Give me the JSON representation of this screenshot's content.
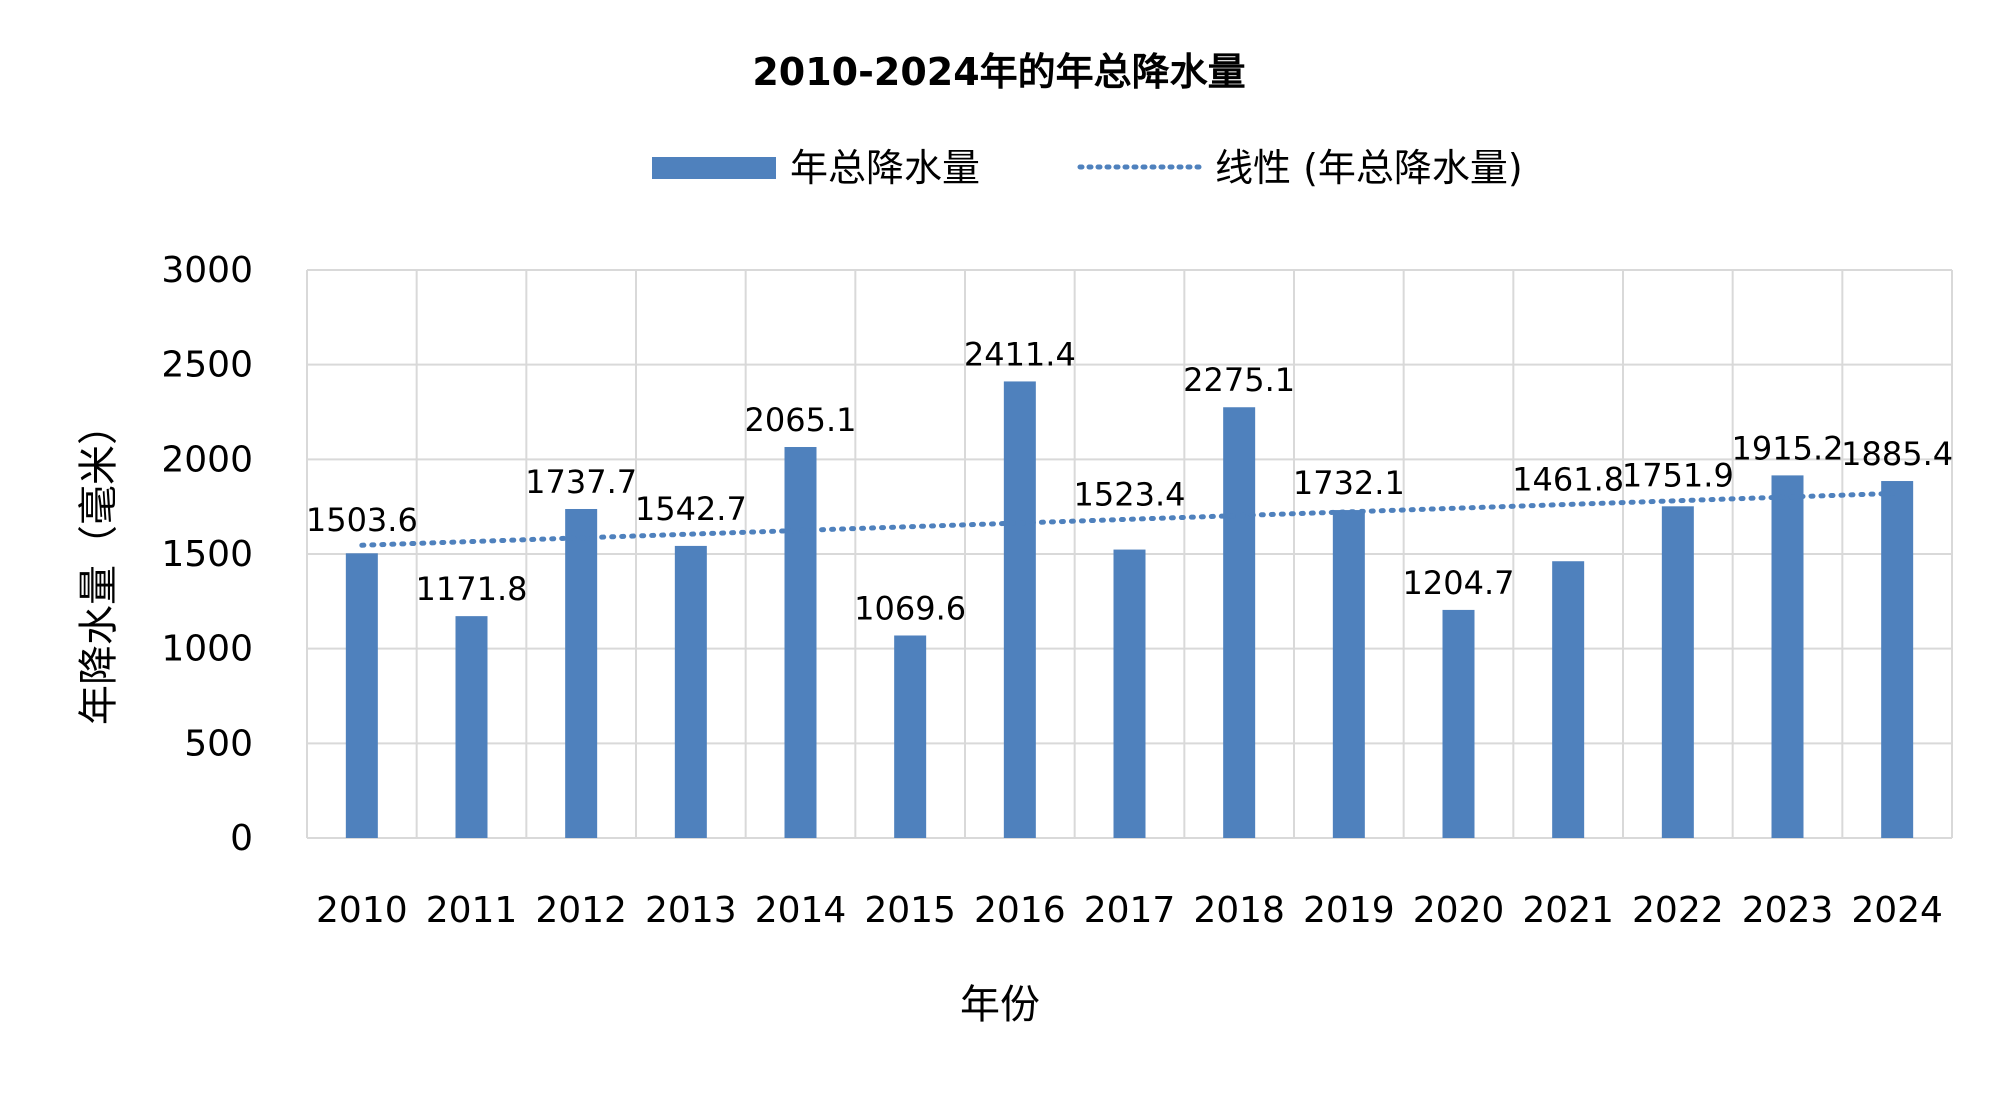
{
  "chart_data": {
    "type": "bar",
    "title": "2010-2024年的年总降水量",
    "xlabel": "年份",
    "ylabel": "年降水量（毫米）",
    "categories": [
      "2010",
      "2011",
      "2012",
      "2013",
      "2014",
      "2015",
      "2016",
      "2017",
      "2018",
      "2019",
      "2020",
      "2021",
      "2022",
      "2023",
      "2024"
    ],
    "series": [
      {
        "name": "年总降水量",
        "color": "#4f81bd",
        "values": [
          1503.6,
          1171.8,
          1737.7,
          1542.7,
          2065.1,
          1069.6,
          2411.4,
          1523.4,
          2275.1,
          1732.1,
          1204.7,
          1461.8,
          1751.9,
          1915.2,
          1885.4
        ],
        "data_labels": [
          "1503.6",
          "1171.8",
          "1737.7",
          "1542.7",
          "2065.1",
          "1069.6",
          "2411.4",
          "1523.4",
          "2275.1",
          "1732.1",
          "1204.7",
          "1461.8",
          "1751.9",
          "1915.2",
          "1885.4"
        ]
      }
    ],
    "trendline": {
      "name": "线性 (年总降水量)",
      "type": "linear",
      "style": "dotted",
      "color": "#4f81bd"
    },
    "ylim": [
      0,
      3000
    ],
    "yticks": [
      "0",
      "500",
      "1000",
      "1500",
      "2000",
      "2500",
      "3000"
    ],
    "grid": true,
    "legend_position": "top"
  }
}
